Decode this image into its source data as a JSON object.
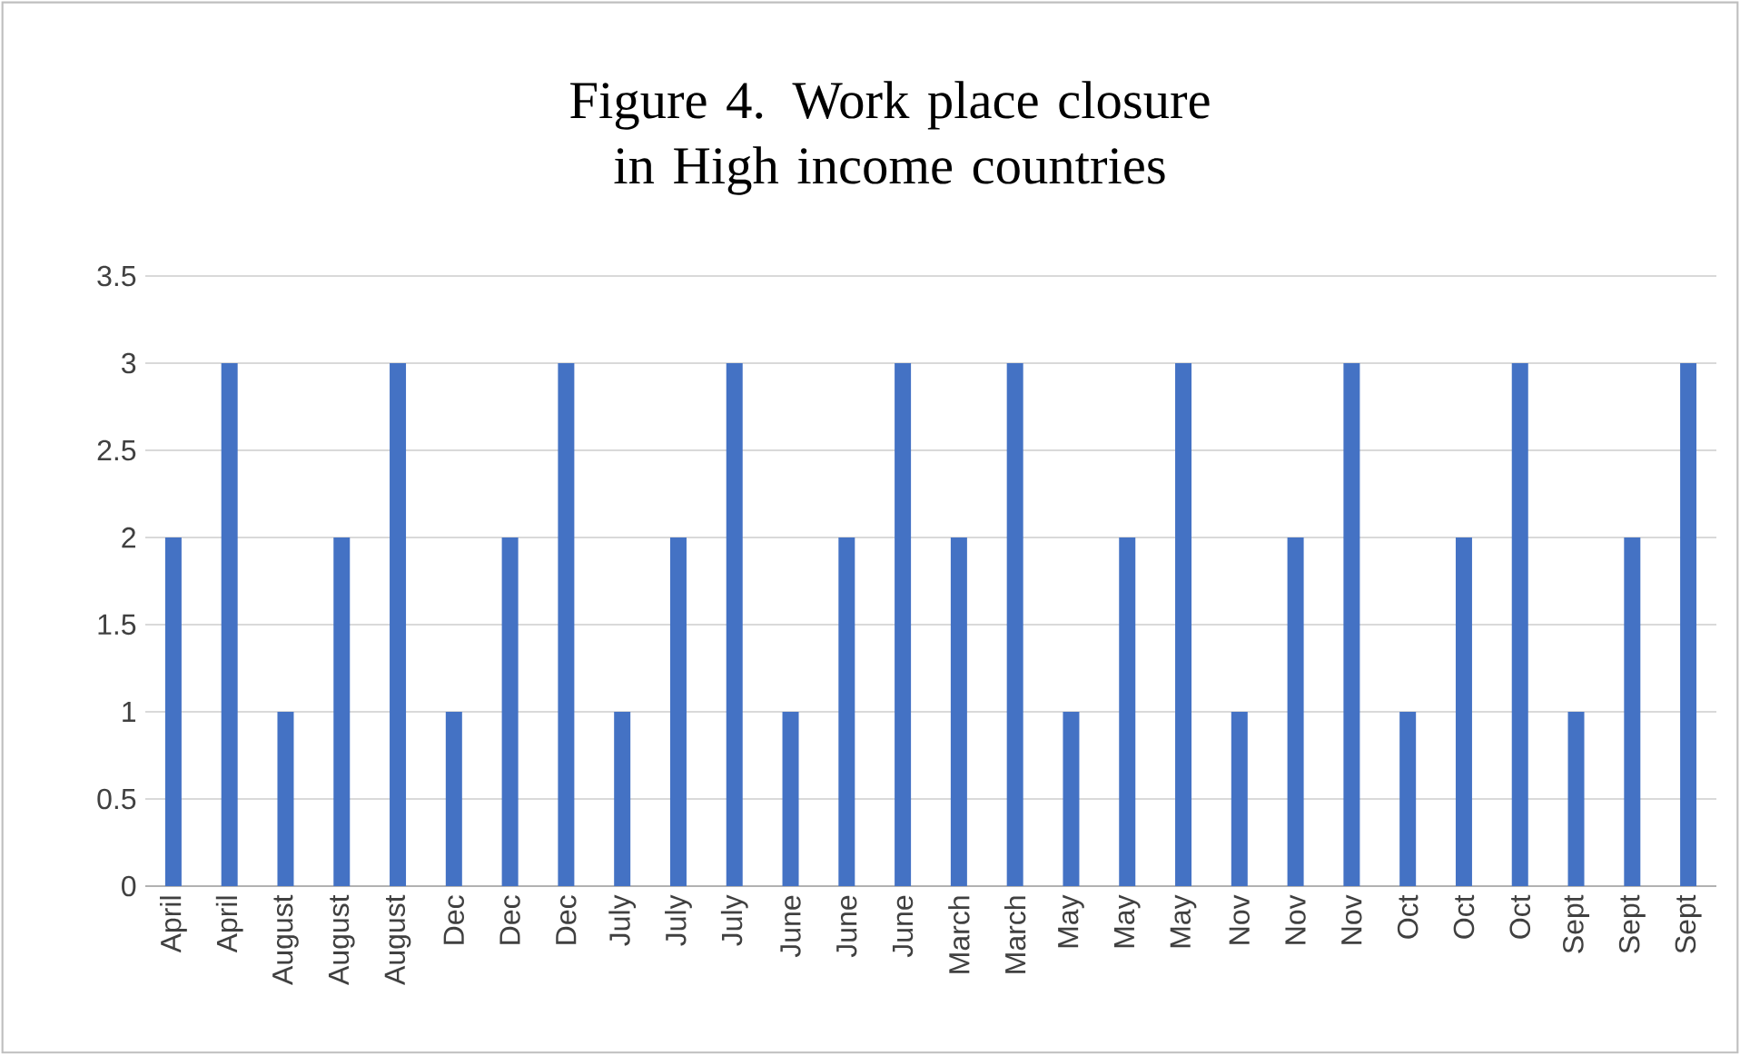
{
  "chart_data": {
    "type": "bar",
    "title": "Figure 4. Work place closure in High income countries",
    "categories": [
      "April",
      "April",
      "August",
      "August",
      "August",
      "Dec",
      "Dec",
      "Dec",
      "July",
      "July",
      "July",
      "June",
      "June",
      "June",
      "March",
      "March",
      "May",
      "May",
      "May",
      "Nov",
      "Nov",
      "Nov",
      "Oct",
      "Oct",
      "Oct",
      "Sept",
      "Sept",
      "Sept"
    ],
    "values": [
      2,
      3,
      1,
      2,
      3,
      1,
      2,
      3,
      1,
      2,
      3,
      1,
      2,
      3,
      2,
      3,
      1,
      2,
      3,
      1,
      2,
      3,
      1,
      2,
      3,
      1,
      2,
      3
    ],
    "color": "#4472c4",
    "ylim": [
      0,
      3.5
    ],
    "yticks": [
      0,
      0.5,
      1,
      1.5,
      2,
      2.5,
      3,
      3.5
    ],
    "grid": "y"
  }
}
